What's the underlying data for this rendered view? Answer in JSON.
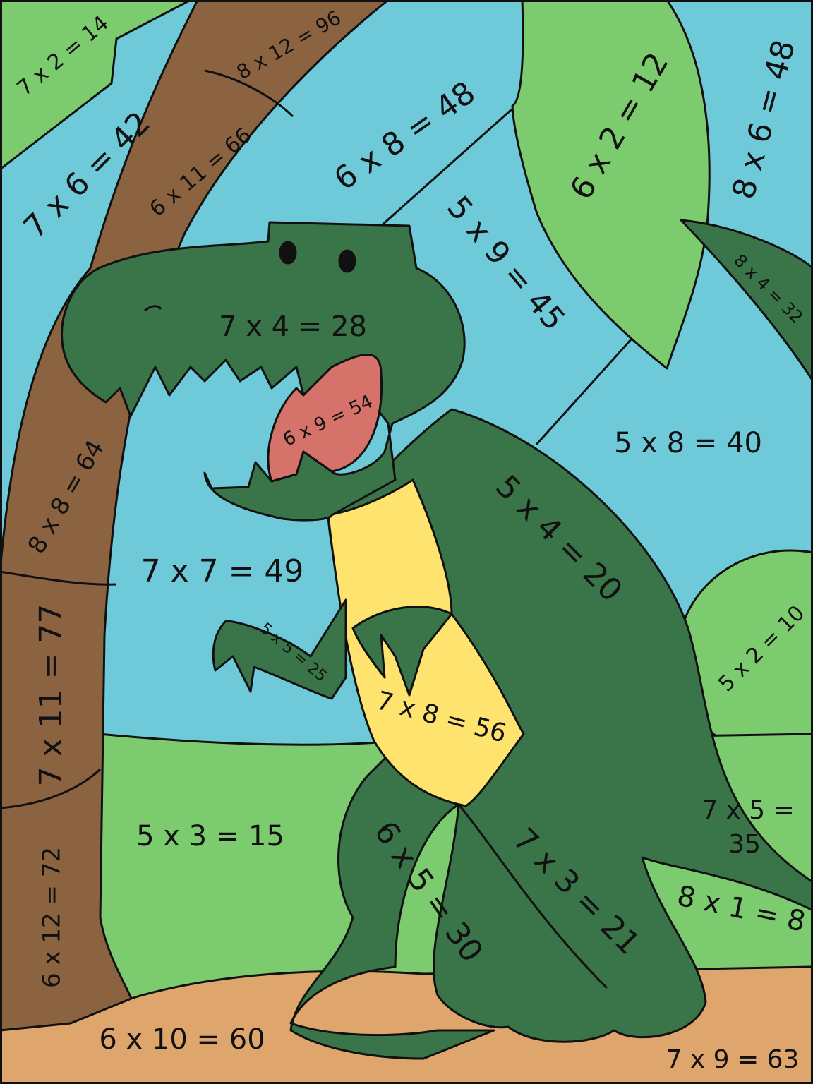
{
  "labels": [
    "7 x 2 = 14",
    "8 x 12 = 96",
    "7 x 6 = 42",
    "6 x 11 = 66",
    "6 x 8 = 48",
    "6 x 2 = 12",
    "8 x 6 = 48",
    "5 x 9 = 45",
    "8 x 4 = 32",
    "7 x 4 = 28",
    "6 x 9 = 54",
    "5 x 8 = 40",
    "8 x 8 = 64",
    "5 x 4 = 20",
    "7 x 7 = 49",
    "7 x 11 = 77",
    "5 x 5 = 25",
    "5 x 2 = 10",
    "7 x 8 = 56",
    "7 x 5 =",
    "35",
    "5 x 3 = 15",
    "6 x 12 = 72",
    "6 x 5 = 30",
    "7 x 3 = 21",
    "8 x 1 = 8",
    "6 x 10 = 60",
    "7 x 9 = 63"
  ]
}
